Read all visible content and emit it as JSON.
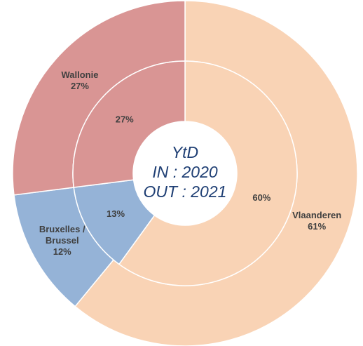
{
  "chart_data": {
    "type": "donut",
    "center_text": [
      "YtD",
      "IN : 2020",
      "OUT : 2021"
    ],
    "categories": [
      "Vlaanderen",
      "Bruxelles / Brussel",
      "Wallonie"
    ],
    "colors": [
      "#f9d3b5",
      "#95b3d7",
      "#d99594"
    ],
    "series": [
      {
        "values": [
          61,
          12,
          27
        ],
        "value_labels": [
          "61%",
          "12%",
          "27%"
        ]
      },
      {
        "values": [
          60,
          13,
          27
        ],
        "value_labels": [
          "60%",
          "13%",
          "27%"
        ]
      }
    ]
  }
}
